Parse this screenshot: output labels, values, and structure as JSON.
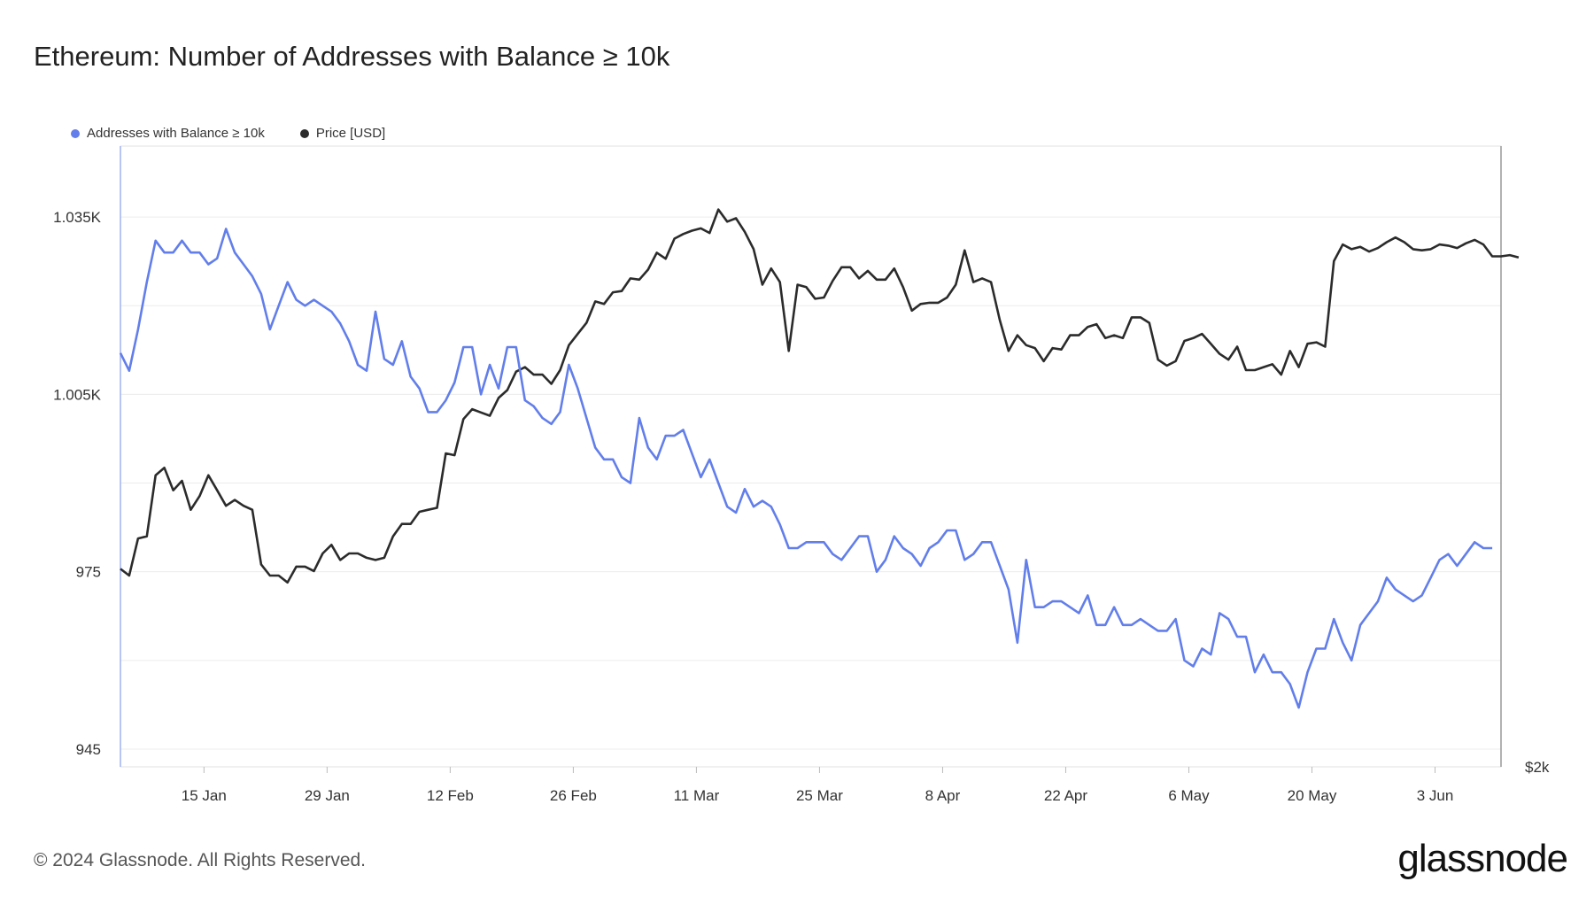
{
  "title": "Ethereum: Number of Addresses with Balance ≥ 10k",
  "footer": "© 2024 Glassnode. All Rights Reserved.",
  "brand": "glassnode",
  "chart_data": {
    "type": "line",
    "title": "Ethereum: Number of Addresses with Balance ≥ 10k",
    "legend": [
      {
        "name": "Addresses with Balance ≥ 10k",
        "color": "#627eea"
      },
      {
        "name": "Price [USD]",
        "color": "#2b2b2b"
      }
    ],
    "x_tick_labels": [
      "15 Jan",
      "29 Jan",
      "12 Feb",
      "26 Feb",
      "11 Mar",
      "25 Mar",
      "8 Apr",
      "22 Apr",
      "6 May",
      "20 May",
      "3 Jun"
    ],
    "x_tick_days": [
      15,
      29,
      43,
      57,
      71,
      85,
      99,
      113,
      127,
      141,
      155
    ],
    "x_range_days": [
      5.5,
      162.5
    ],
    "y_left": {
      "ticks": [
        945,
        975,
        1005,
        1035
      ],
      "tick_labels": [
        "945",
        "975",
        "1.005K",
        "1.035K"
      ],
      "range": [
        942,
        1047
      ]
    },
    "y_right": {
      "tick_labels": [
        "$2k"
      ],
      "scale": "log",
      "range": [
        1500,
        5200
      ]
    },
    "series": [
      {
        "name": "Addresses with Balance ≥ 10k",
        "axis": "left",
        "start_day": 5.5,
        "step_days": 1,
        "values": [
          1012,
          1009,
          1016,
          1024,
          1031,
          1029,
          1029,
          1031,
          1029,
          1029,
          1027,
          1028,
          1033,
          1029,
          1027,
          1025,
          1022,
          1016,
          1020,
          1024,
          1021,
          1020,
          1021,
          1020,
          1019,
          1017,
          1014,
          1010,
          1009,
          1019,
          1011,
          1010,
          1014,
          1008,
          1006,
          1002,
          1002,
          1004,
          1007,
          1013,
          1013,
          1005,
          1010,
          1006,
          1013,
          1013,
          1004,
          1003,
          1001,
          1000,
          1002,
          1010,
          1006,
          1001,
          996,
          994,
          994,
          991,
          990,
          1001,
          996,
          994,
          998,
          998,
          999,
          995,
          991,
          994,
          990,
          986,
          985,
          989,
          986,
          987,
          986,
          983,
          979,
          979,
          980,
          980,
          980,
          978,
          977,
          979,
          981,
          981,
          975,
          977,
          981,
          979,
          978,
          976,
          979,
          980,
          982,
          982,
          977,
          978,
          980,
          980,
          976,
          972,
          963,
          977,
          969,
          969,
          970,
          970,
          969,
          968,
          971,
          966,
          966,
          969,
          966,
          966,
          967,
          966,
          965,
          965,
          967,
          960,
          959,
          962,
          961,
          968,
          967,
          964,
          964,
          958,
          961,
          958,
          958,
          956,
          952,
          958,
          962,
          962,
          967,
          963,
          960,
          966,
          968,
          970,
          974,
          972,
          971,
          970,
          971,
          974,
          977,
          978,
          976,
          978,
          980,
          979,
          979
        ]
      },
      {
        "name": "Price [USD]",
        "axis": "right",
        "start_day": 5.5,
        "step_days": 1,
        "values": [
          2230,
          2200,
          2370,
          2380,
          2690,
          2730,
          2610,
          2660,
          2510,
          2580,
          2690,
          2610,
          2530,
          2560,
          2530,
          2510,
          2250,
          2200,
          2200,
          2170,
          2240,
          2240,
          2220,
          2300,
          2340,
          2270,
          2300,
          2300,
          2280,
          2270,
          2280,
          2380,
          2440,
          2440,
          2500,
          2510,
          2520,
          2810,
          2800,
          3010,
          3070,
          3050,
          3030,
          3140,
          3190,
          3310,
          3340,
          3290,
          3290,
          3230,
          3320,
          3490,
          3570,
          3650,
          3810,
          3790,
          3880,
          3890,
          3990,
          3980,
          4060,
          4200,
          4150,
          4320,
          4360,
          4390,
          4410,
          4370,
          4580,
          4470,
          4500,
          4380,
          4230,
          3940,
          4070,
          3960,
          3450,
          3940,
          3920,
          3830,
          3840,
          3970,
          4080,
          4080,
          3990,
          4050,
          3980,
          3980,
          4070,
          3920,
          3740,
          3790,
          3800,
          3800,
          3840,
          3940,
          4220,
          3960,
          3990,
          3960,
          3670,
          3450,
          3560,
          3490,
          3470,
          3380,
          3470,
          3460,
          3560,
          3560,
          3620,
          3640,
          3540,
          3560,
          3540,
          3690,
          3690,
          3650,
          3390,
          3350,
          3380,
          3520,
          3540,
          3570,
          3500,
          3430,
          3390,
          3480,
          3320,
          3320,
          3340,
          3360,
          3290,
          3450,
          3340,
          3500,
          3510,
          3480,
          4130,
          4270,
          4230,
          4250,
          4210,
          4240,
          4290,
          4330,
          4290,
          4230,
          4220,
          4230,
          4270,
          4260,
          4240,
          4280,
          4310,
          4270,
          4170,
          4170,
          4180,
          4160
        ]
      }
    ]
  }
}
